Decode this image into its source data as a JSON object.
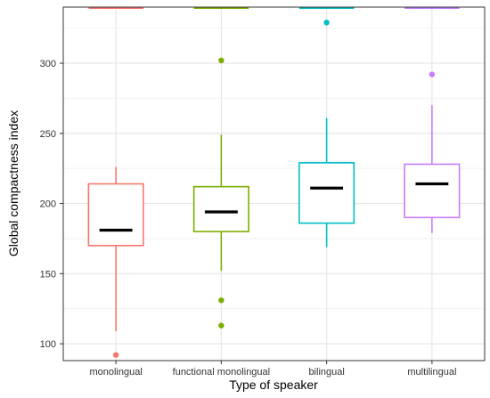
{
  "chart_data": {
    "type": "boxplot",
    "xlabel": "Type of speaker",
    "ylabel": "Global compactness index",
    "ylim": [
      88,
      340
    ],
    "yticks": [
      100,
      150,
      200,
      250,
      300
    ],
    "grid": true,
    "categories": [
      "monolingual",
      "functional monolingual",
      "bilingual",
      "multilingual"
    ],
    "colors": [
      "#f8766d",
      "#7cae00",
      "#00bfc4",
      "#c77cff"
    ],
    "boxes": [
      {
        "whisker_low": 109,
        "q1": 170,
        "median": 181,
        "q3": 214,
        "whisker_high": 226,
        "outliers": [
          92
        ],
        "top_whisker_clipped": true
      },
      {
        "whisker_low": 152,
        "q1": 180,
        "median": 194,
        "q3": 212,
        "whisker_high": 249,
        "outliers": [
          302,
          131,
          113
        ],
        "top_whisker_clipped": true
      },
      {
        "whisker_low": 169,
        "q1": 186,
        "median": 211,
        "q3": 229,
        "whisker_high": 261,
        "outliers": [
          329
        ],
        "top_whisker_clipped": true
      },
      {
        "whisker_low": 179,
        "q1": 190,
        "median": 214,
        "q3": 228,
        "whisker_high": 270,
        "outliers": [
          292
        ],
        "top_whisker_clipped": true
      }
    ]
  }
}
